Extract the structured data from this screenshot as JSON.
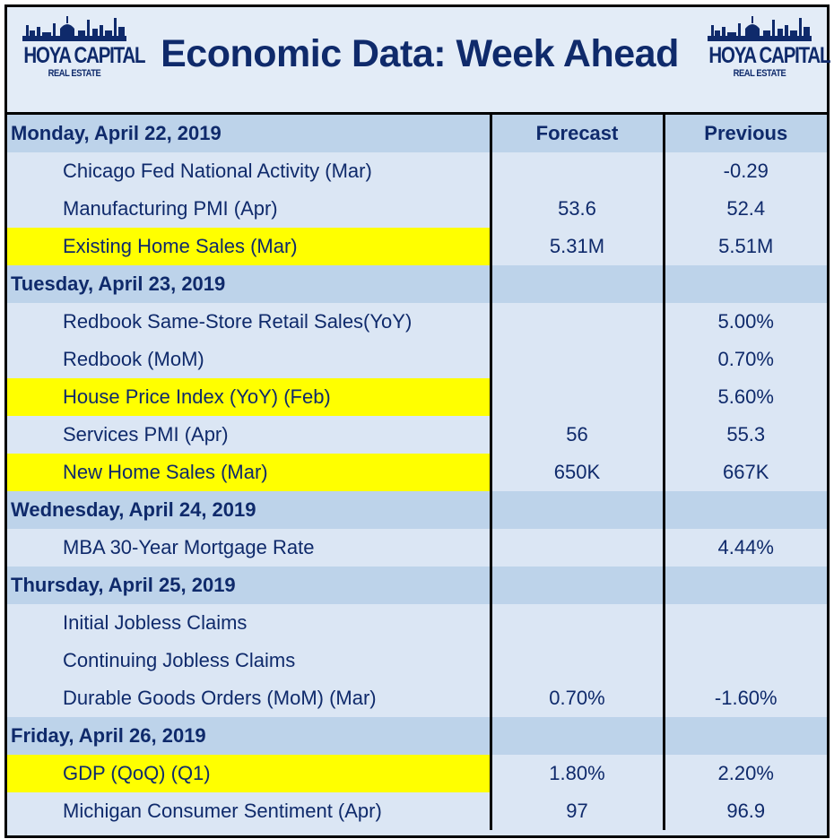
{
  "header": {
    "title": "Economic Data: Week Ahead",
    "logo_left": {
      "main": "HOYA CAPITAL",
      "sub": "REAL ESTATE"
    },
    "logo_right": {
      "main": "HOYA CAPITAL",
      "sub": "REAL ESTATE"
    }
  },
  "columns": {
    "forecast": "Forecast",
    "previous": "Previous"
  },
  "colors": {
    "title": "#0f2a6b",
    "day_row": "#bdd3ea",
    "item_row": "#dbe6f4",
    "highlight": "#ffff00"
  },
  "days": [
    {
      "date": "Monday, April 22, 2019",
      "items": [
        {
          "name": "Chicago Fed National Activity (Mar)",
          "forecast": "",
          "previous": "-0.29",
          "highlight": false
        },
        {
          "name": "Manufacturing PMI (Apr)",
          "forecast": "53.6",
          "previous": "52.4",
          "highlight": false
        },
        {
          "name": "Existing Home Sales (Mar)",
          "forecast": "5.31M",
          "previous": "5.51M",
          "highlight": true
        }
      ]
    },
    {
      "date": "Tuesday, April 23, 2019",
      "items": [
        {
          "name": "Redbook Same-Store Retail Sales(YoY)",
          "forecast": "",
          "previous": "5.00%",
          "highlight": false
        },
        {
          "name": "Redbook (MoM)",
          "forecast": "",
          "previous": "0.70%",
          "highlight": false
        },
        {
          "name": "House Price Index (YoY) (Feb)",
          "forecast": "",
          "previous": "5.60%",
          "highlight": true
        },
        {
          "name": "Services PMI (Apr)",
          "forecast": "56",
          "previous": "55.3",
          "highlight": false
        },
        {
          "name": "New Home Sales (Mar)",
          "forecast": "650K",
          "previous": "667K",
          "highlight": true
        }
      ]
    },
    {
      "date": "Wednesday, April 24, 2019",
      "items": [
        {
          "name": "MBA 30-Year Mortgage Rate",
          "forecast": "",
          "previous": "4.44%",
          "highlight": false
        }
      ]
    },
    {
      "date": "Thursday, April 25, 2019",
      "items": [
        {
          "name": "Initial Jobless Claims",
          "forecast": "",
          "previous": "",
          "highlight": false
        },
        {
          "name": "Continuing Jobless Claims",
          "forecast": "",
          "previous": "",
          "highlight": false
        },
        {
          "name": "Durable Goods Orders (MoM) (Mar)",
          "forecast": "0.70%",
          "previous": "-1.60%",
          "highlight": false
        }
      ]
    },
    {
      "date": "Friday, April 26, 2019",
      "items": [
        {
          "name": "GDP (QoQ) (Q1)",
          "forecast": "1.80%",
          "previous": "2.20%",
          "highlight": true
        },
        {
          "name": "Michigan Consumer Sentiment (Apr)",
          "forecast": "97",
          "previous": "96.9",
          "highlight": false
        }
      ]
    }
  ]
}
